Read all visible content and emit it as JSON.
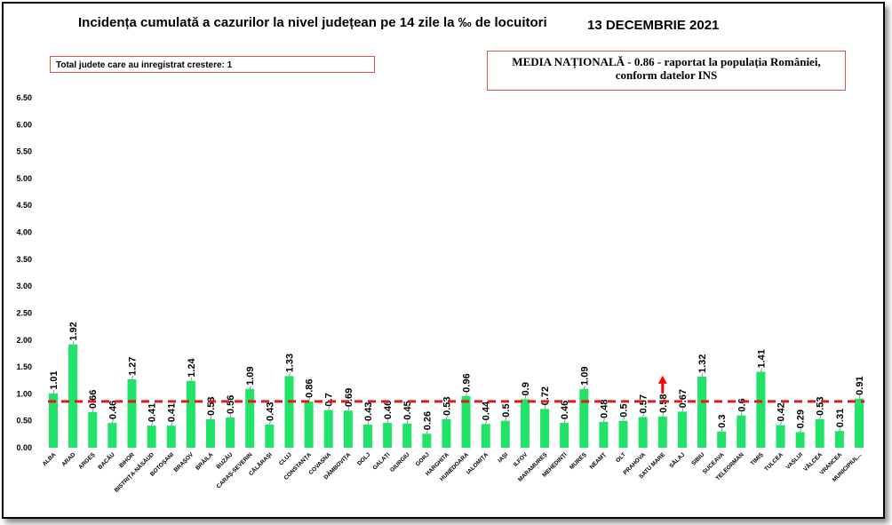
{
  "header": {
    "title": "Incidența cumulată a cazurilor la nivel județean pe 14 zile la ‰ de locuitori",
    "date": "13 DECEMBRIE 2021"
  },
  "increase_box": {
    "text": "Total judete care au inregistrat crestere: 1"
  },
  "national_box": {
    "line1": "MEDIA NAȚIONALĂ  - 0.86 -  raportat la populația României,",
    "line2": "conform datelor INS"
  },
  "colors": {
    "bar": "#22e36a",
    "avg_line": "#e21a1a",
    "arrow": "#ff0000",
    "axis_text": "#000000"
  },
  "chart_data": {
    "type": "bar",
    "title": "Incidența cumulată a cazurilor la nivel județean pe 14 zile la ‰ de locuitori",
    "ylim": [
      0,
      6.5
    ],
    "yticks": [
      "0.00",
      "0.50",
      "1.00",
      "1.50",
      "2.00",
      "2.50",
      "3.00",
      "3.50",
      "4.00",
      "4.50",
      "5.00",
      "5.50",
      "6.00",
      "6.50"
    ],
    "categories": [
      "ALBA",
      "ARAD",
      "ARGEȘ",
      "BACĂU",
      "BIHOR",
      "BISTRIȚA-NĂSĂUD",
      "BOTOȘANI",
      "BRAȘOV",
      "BRĂILA",
      "BUZĂU",
      "CARAȘ-SEVERIN",
      "CĂLĂRAȘI",
      "CLUJ",
      "CONSTANȚA",
      "COVASNA",
      "DÂMBOVIȚA",
      "DOLJ",
      "GALAȚI",
      "GIURGIU",
      "GORJ",
      "HARGHITA",
      "HUNEDOARA",
      "IALOMIȚA",
      "IAȘI",
      "ILFOV",
      "MARAMUREȘ",
      "MEHEDINȚI",
      "MUREȘ",
      "NEAMȚ",
      "OLT",
      "PRAHOVA",
      "SATU MARE",
      "SĂLAJ",
      "SIBIU",
      "SUCEAVA",
      "TELEORMAN",
      "TIMIȘ",
      "TULCEA",
      "VASLUI",
      "VÂLCEA",
      "VRANCEA",
      "MUNICIPIUL..."
    ],
    "values": [
      1.01,
      1.92,
      0.66,
      0.46,
      1.27,
      0.41,
      0.41,
      1.24,
      0.53,
      0.56,
      1.09,
      0.43,
      1.33,
      0.86,
      0.7,
      0.69,
      0.43,
      0.46,
      0.45,
      0.26,
      0.53,
      0.96,
      0.44,
      0.5,
      0.9,
      0.72,
      0.46,
      1.09,
      0.48,
      0.5,
      0.57,
      0.58,
      0.67,
      1.32,
      0.3,
      0.6,
      1.41,
      0.42,
      0.29,
      0.53,
      0.31,
      0.91
    ],
    "labels": [
      "1.01",
      "1.92",
      "0.66",
      "0.46",
      "1.27",
      "0.41",
      "0.41",
      "1.24",
      "0.53",
      "0.56",
      "1.09",
      "0.43",
      "1.33",
      "0.86",
      "0.7",
      "0.69",
      "0.43",
      "0.46",
      "0.45",
      "0.26",
      "0.53",
      "0.96",
      "0.44",
      "0.5",
      "0.9",
      "0.72",
      "0.46",
      "1.09",
      "0.48",
      "0.5",
      "0.57",
      "0.58",
      "0.67",
      "1.32",
      "0.3",
      "0.6",
      "1.41",
      "0.42",
      "0.29",
      "0.53",
      "0.31",
      "0.91"
    ],
    "national_average": 0.86,
    "increase_marker_category": "SATU MARE"
  }
}
